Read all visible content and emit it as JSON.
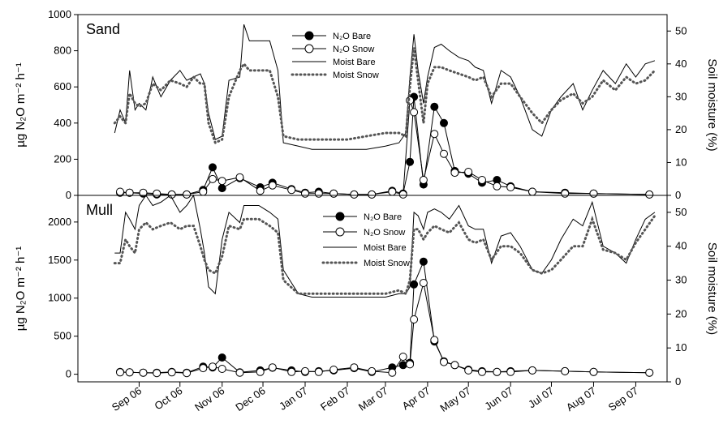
{
  "chart_data": [
    {
      "type": "line",
      "panel_label": "Sand",
      "ylabel_left": "µg N₂O m⁻² h⁻¹",
      "ylabel_right": "Soil moisture (%)",
      "ylim_left": [
        0,
        1000
      ],
      "yticks_left": [
        0,
        200,
        400,
        600,
        800,
        1000
      ],
      "ylim_right": [
        0,
        55
      ],
      "yticks_right": [
        0,
        10,
        20,
        30,
        40,
        50
      ],
      "legend_position": "top-center",
      "series": [
        {
          "name": "N₂O Bare",
          "axis": "left",
          "style": "filled-circle",
          "x": [
            "2006-09-01",
            "2006-09-08",
            "2006-09-18",
            "2006-09-28",
            "2006-10-09",
            "2006-10-20",
            "2006-11-01",
            "2006-11-08",
            "2006-11-15",
            "2006-11-28",
            "2006-12-13",
            "2006-12-22",
            "2007-01-05",
            "2007-01-15",
            "2007-01-25",
            "2007-02-05",
            "2007-02-20",
            "2007-03-05",
            "2007-03-20",
            "2007-03-28",
            "2007-04-02",
            "2007-04-05",
            "2007-04-12",
            "2007-04-20",
            "2007-04-27",
            "2007-05-05",
            "2007-05-15",
            "2007-05-25",
            "2007-06-05",
            "2007-06-15",
            "2007-07-01",
            "2007-07-25",
            "2007-08-15",
            "2007-09-25"
          ],
          "y": [
            15,
            15,
            10,
            5,
            5,
            5,
            30,
            155,
            40,
            95,
            45,
            70,
            35,
            15,
            20,
            10,
            5,
            5,
            25,
            10,
            185,
            545,
            60,
            490,
            400,
            135,
            120,
            70,
            85,
            50,
            20,
            15,
            10,
            5
          ]
        },
        {
          "name": "N₂O Snow",
          "axis": "left",
          "style": "open-circle",
          "x": [
            "2006-09-01",
            "2006-09-08",
            "2006-09-18",
            "2006-09-28",
            "2006-10-09",
            "2006-10-20",
            "2006-11-01",
            "2006-11-08",
            "2006-11-15",
            "2006-11-28",
            "2006-12-13",
            "2006-12-22",
            "2007-01-05",
            "2007-01-15",
            "2007-01-25",
            "2007-02-05",
            "2007-02-20",
            "2007-03-05",
            "2007-03-20",
            "2007-03-28",
            "2007-04-02",
            "2007-04-05",
            "2007-04-12",
            "2007-04-20",
            "2007-04-27",
            "2007-05-05",
            "2007-05-15",
            "2007-05-25",
            "2007-06-05",
            "2007-06-15",
            "2007-07-01",
            "2007-07-25",
            "2007-08-15",
            "2007-09-25"
          ],
          "y": [
            20,
            15,
            15,
            10,
            5,
            5,
            20,
            90,
            80,
            100,
            25,
            55,
            30,
            10,
            10,
            10,
            5,
            5,
            20,
            5,
            525,
            460,
            85,
            340,
            230,
            125,
            130,
            85,
            50,
            45,
            20,
            10,
            10,
            5
          ]
        },
        {
          "name": "Moist Bare",
          "axis": "right",
          "style": "solid-line",
          "x": [
            "2006-08-28",
            "2006-09-01",
            "2006-09-05",
            "2006-09-08",
            "2006-09-12",
            "2006-09-15",
            "2006-09-20",
            "2006-09-25",
            "2006-10-01",
            "2006-10-08",
            "2006-10-15",
            "2006-10-20",
            "2006-10-25",
            "2006-10-30",
            "2006-11-02",
            "2006-11-05",
            "2006-11-10",
            "2006-11-15",
            "2006-11-20",
            "2006-11-28",
            "2006-12-01",
            "2006-12-05",
            "2006-12-12",
            "2006-12-20",
            "2006-12-26",
            "2006-12-30",
            "2007-01-10",
            "2007-01-20",
            "2007-02-01",
            "2007-02-15",
            "2007-03-01",
            "2007-03-15",
            "2007-03-25",
            "2007-03-30",
            "2007-04-02",
            "2007-04-05",
            "2007-04-08",
            "2007-04-12",
            "2007-04-15",
            "2007-04-20",
            "2007-04-25",
            "2007-05-01",
            "2007-05-08",
            "2007-05-15",
            "2007-05-20",
            "2007-05-26",
            "2007-06-01",
            "2007-06-08",
            "2007-06-15",
            "2007-06-22",
            "2007-07-01",
            "2007-07-08",
            "2007-07-15",
            "2007-07-22",
            "2007-07-31",
            "2007-08-07",
            "2007-08-14",
            "2007-08-22",
            "2007-08-31",
            "2007-09-08",
            "2007-09-15",
            "2007-09-22",
            "2007-09-29"
          ],
          "y": [
            19,
            26,
            22,
            38,
            26,
            28,
            26,
            36,
            30,
            35,
            38,
            35,
            36,
            37,
            34,
            25,
            17,
            18,
            35,
            36,
            52,
            47,
            47,
            47,
            38,
            16,
            15,
            14,
            14,
            14,
            14,
            15,
            16,
            19,
            36,
            49,
            38,
            28,
            36,
            45,
            46,
            44,
            42,
            41,
            39,
            38,
            28,
            38,
            36,
            30,
            20,
            18,
            26,
            30,
            34,
            26,
            32,
            38,
            34,
            40,
            36,
            40,
            41
          ]
        },
        {
          "name": "Moist Snow",
          "axis": "right",
          "style": "dotted-line",
          "x": [
            "2006-08-28",
            "2006-09-01",
            "2006-09-05",
            "2006-09-08",
            "2006-09-12",
            "2006-09-15",
            "2006-09-20",
            "2006-09-25",
            "2006-10-01",
            "2006-10-08",
            "2006-10-15",
            "2006-10-20",
            "2006-10-25",
            "2006-10-30",
            "2006-11-02",
            "2006-11-05",
            "2006-11-10",
            "2006-11-15",
            "2006-11-20",
            "2006-11-28",
            "2006-12-01",
            "2006-12-05",
            "2006-12-12",
            "2006-12-20",
            "2006-12-26",
            "2006-12-30",
            "2007-01-10",
            "2007-01-20",
            "2007-02-01",
            "2007-02-15",
            "2007-03-01",
            "2007-03-15",
            "2007-03-25",
            "2007-03-30",
            "2007-04-02",
            "2007-04-05",
            "2007-04-08",
            "2007-04-12",
            "2007-04-15",
            "2007-04-20",
            "2007-04-25",
            "2007-05-01",
            "2007-05-08",
            "2007-05-15",
            "2007-05-20",
            "2007-05-26",
            "2007-06-01",
            "2007-06-08",
            "2007-06-15",
            "2007-06-22",
            "2007-07-01",
            "2007-07-08",
            "2007-07-15",
            "2007-07-22",
            "2007-07-31",
            "2007-08-07",
            "2007-08-14",
            "2007-08-22",
            "2007-08-31",
            "2007-09-08",
            "2007-09-15",
            "2007-09-22",
            "2007-09-29"
          ],
          "y": [
            22,
            24,
            22,
            31,
            28,
            27,
            28,
            34,
            32,
            35,
            34,
            33,
            36,
            34,
            34,
            22,
            16,
            17,
            30,
            38,
            40,
            38,
            38,
            38,
            30,
            18,
            17,
            17,
            17,
            17,
            18,
            19,
            19,
            18,
            33,
            45,
            35,
            22,
            34,
            39,
            39,
            38,
            37,
            36,
            35,
            36,
            30,
            34,
            34,
            30,
            25,
            22,
            26,
            29,
            31,
            28,
            30,
            35,
            32,
            36,
            34,
            35,
            38
          ]
        }
      ]
    },
    {
      "type": "line",
      "panel_label": "Mull",
      "ylabel_left": "µg N₂O m⁻² h⁻¹",
      "ylabel_right": "Soil moisture (%)",
      "ylim_left": [
        -100,
        2350
      ],
      "yticks_left": [
        0,
        500,
        1000,
        1500,
        2000
      ],
      "ylim_right": [
        0,
        55
      ],
      "yticks_right": [
        0,
        10,
        20,
        30,
        40,
        50
      ],
      "legend_position": "top-center",
      "series": [
        {
          "name": "N₂O Bare",
          "axis": "left",
          "style": "filled-circle",
          "x": [
            "2006-09-01",
            "2006-09-08",
            "2006-09-18",
            "2006-09-28",
            "2006-10-09",
            "2006-10-20",
            "2006-11-01",
            "2006-11-08",
            "2006-11-15",
            "2006-11-28",
            "2006-12-13",
            "2006-12-22",
            "2007-01-05",
            "2007-01-15",
            "2007-01-25",
            "2007-02-05",
            "2007-02-20",
            "2007-03-05",
            "2007-03-20",
            "2007-03-28",
            "2007-04-02",
            "2007-04-05",
            "2007-04-12",
            "2007-04-20",
            "2007-04-27",
            "2007-05-05",
            "2007-05-15",
            "2007-05-25",
            "2007-06-05",
            "2007-06-15",
            "2007-07-01",
            "2007-07-25",
            "2007-08-15",
            "2007-09-25"
          ],
          "y": [
            30,
            25,
            20,
            20,
            30,
            20,
            100,
            90,
            220,
            25,
            50,
            85,
            50,
            30,
            40,
            50,
            80,
            30,
            90,
            120,
            150,
            1180,
            1480,
            430,
            170,
            120,
            60,
            40,
            30,
            40,
            50,
            40,
            30,
            20
          ]
        },
        {
          "name": "N₂O Snow",
          "axis": "left",
          "style": "open-circle",
          "x": [
            "2006-09-01",
            "2006-09-08",
            "2006-09-18",
            "2006-09-28",
            "2006-10-09",
            "2006-10-20",
            "2006-11-01",
            "2006-11-08",
            "2006-11-15",
            "2006-11-28",
            "2006-12-13",
            "2006-12-22",
            "2007-01-05",
            "2007-01-15",
            "2007-01-25",
            "2007-02-05",
            "2007-02-20",
            "2007-03-05",
            "2007-03-20",
            "2007-03-28",
            "2007-04-02",
            "2007-04-05",
            "2007-04-12",
            "2007-04-20",
            "2007-04-27",
            "2007-05-05",
            "2007-05-15",
            "2007-05-25",
            "2007-06-05",
            "2007-06-15",
            "2007-07-01",
            "2007-07-25",
            "2007-08-15",
            "2007-09-25"
          ],
          "y": [
            25,
            25,
            20,
            15,
            25,
            15,
            80,
            100,
            70,
            20,
            30,
            90,
            30,
            40,
            30,
            60,
            90,
            40,
            20,
            230,
            130,
            720,
            1200,
            450,
            160,
            120,
            50,
            30,
            30,
            30,
            50,
            40,
            30,
            20
          ]
        },
        {
          "name": "Moist Bare",
          "axis": "right",
          "style": "solid-line",
          "x": [
            "2006-08-28",
            "2006-09-01",
            "2006-09-05",
            "2006-09-08",
            "2006-09-12",
            "2006-09-15",
            "2006-09-20",
            "2006-09-25",
            "2006-10-01",
            "2006-10-08",
            "2006-10-15",
            "2006-10-20",
            "2006-10-25",
            "2006-10-30",
            "2006-11-02",
            "2006-11-05",
            "2006-11-10",
            "2006-11-15",
            "2006-11-20",
            "2006-11-28",
            "2006-12-01",
            "2006-12-05",
            "2006-12-12",
            "2006-12-20",
            "2006-12-26",
            "2006-12-30",
            "2007-01-10",
            "2007-01-20",
            "2007-02-01",
            "2007-02-15",
            "2007-03-01",
            "2007-03-15",
            "2007-03-25",
            "2007-03-30",
            "2007-04-02",
            "2007-04-05",
            "2007-04-08",
            "2007-04-12",
            "2007-04-15",
            "2007-04-20",
            "2007-04-25",
            "2007-05-01",
            "2007-05-08",
            "2007-05-15",
            "2007-05-20",
            "2007-05-26",
            "2007-06-01",
            "2007-06-08",
            "2007-06-15",
            "2007-06-22",
            "2007-07-01",
            "2007-07-08",
            "2007-07-15",
            "2007-07-22",
            "2007-07-31",
            "2007-08-07",
            "2007-08-14",
            "2007-08-22",
            "2007-08-31",
            "2007-09-08",
            "2007-09-15",
            "2007-09-22",
            "2007-09-29"
          ],
          "y": [
            38,
            38,
            50,
            48,
            45,
            52,
            55,
            52,
            53,
            55,
            50,
            52,
            55,
            45,
            38,
            28,
            26,
            42,
            50,
            47,
            52,
            52,
            52,
            50,
            48,
            33,
            26,
            25,
            25,
            25,
            25,
            25,
            26,
            26,
            28,
            50,
            49,
            45,
            50,
            51,
            50,
            48,
            52,
            46,
            45,
            45,
            35,
            43,
            44,
            40,
            33,
            32,
            36,
            42,
            48,
            46,
            53,
            40,
            38,
            35,
            42,
            48,
            50
          ]
        },
        {
          "name": "Moist Snow",
          "axis": "right",
          "style": "dotted-line",
          "x": [
            "2006-08-28",
            "2006-09-01",
            "2006-09-05",
            "2006-09-08",
            "2006-09-12",
            "2006-09-15",
            "2006-09-20",
            "2006-09-25",
            "2006-10-01",
            "2006-10-08",
            "2006-10-15",
            "2006-10-20",
            "2006-10-25",
            "2006-10-30",
            "2006-11-02",
            "2006-11-05",
            "2006-11-10",
            "2006-11-15",
            "2006-11-20",
            "2006-11-28",
            "2006-12-01",
            "2006-12-05",
            "2006-12-12",
            "2006-12-20",
            "2006-12-26",
            "2006-12-30",
            "2007-01-10",
            "2007-01-20",
            "2007-02-01",
            "2007-02-15",
            "2007-03-01",
            "2007-03-15",
            "2007-03-25",
            "2007-03-30",
            "2007-04-02",
            "2007-04-05",
            "2007-04-08",
            "2007-04-12",
            "2007-04-15",
            "2007-04-20",
            "2007-04-25",
            "2007-05-01",
            "2007-05-08",
            "2007-05-15",
            "2007-05-20",
            "2007-05-26",
            "2007-06-01",
            "2007-06-08",
            "2007-06-15",
            "2007-06-22",
            "2007-07-01",
            "2007-07-08",
            "2007-07-15",
            "2007-07-22",
            "2007-07-31",
            "2007-08-07",
            "2007-08-14",
            "2007-08-22",
            "2007-08-31",
            "2007-09-08",
            "2007-09-15",
            "2007-09-22",
            "2007-09-29"
          ],
          "y": [
            35,
            35,
            42,
            40,
            38,
            45,
            47,
            45,
            46,
            47,
            45,
            46,
            46,
            40,
            36,
            33,
            32,
            37,
            46,
            45,
            48,
            48,
            48,
            46,
            44,
            30,
            26,
            26,
            26,
            26,
            26,
            26,
            27,
            26,
            30,
            45,
            45,
            42,
            44,
            46,
            45,
            44,
            47,
            42,
            41,
            42,
            36,
            40,
            40,
            38,
            33,
            32,
            33,
            36,
            40,
            40,
            48,
            39,
            38,
            36,
            41,
            45,
            49
          ]
        }
      ]
    }
  ],
  "x_axis": {
    "ticks": [
      "Sep 06",
      "Oct 06",
      "Nov 06",
      "Dec 06",
      "Jan 07",
      "Feb 07",
      "Mar 07",
      "Apr 07",
      "May 07",
      "Jun 07",
      "Jul 07",
      "Aug 07",
      "Sep 07"
    ],
    "tick_dates": [
      "2006-09-15",
      "2006-10-15",
      "2006-11-15",
      "2006-12-15",
      "2007-01-15",
      "2007-02-15",
      "2007-03-15",
      "2007-04-15",
      "2007-05-15",
      "2007-06-15",
      "2007-07-15",
      "2007-08-15",
      "2007-09-15"
    ],
    "range": [
      "2006-08-01",
      "2007-10-08"
    ]
  }
}
